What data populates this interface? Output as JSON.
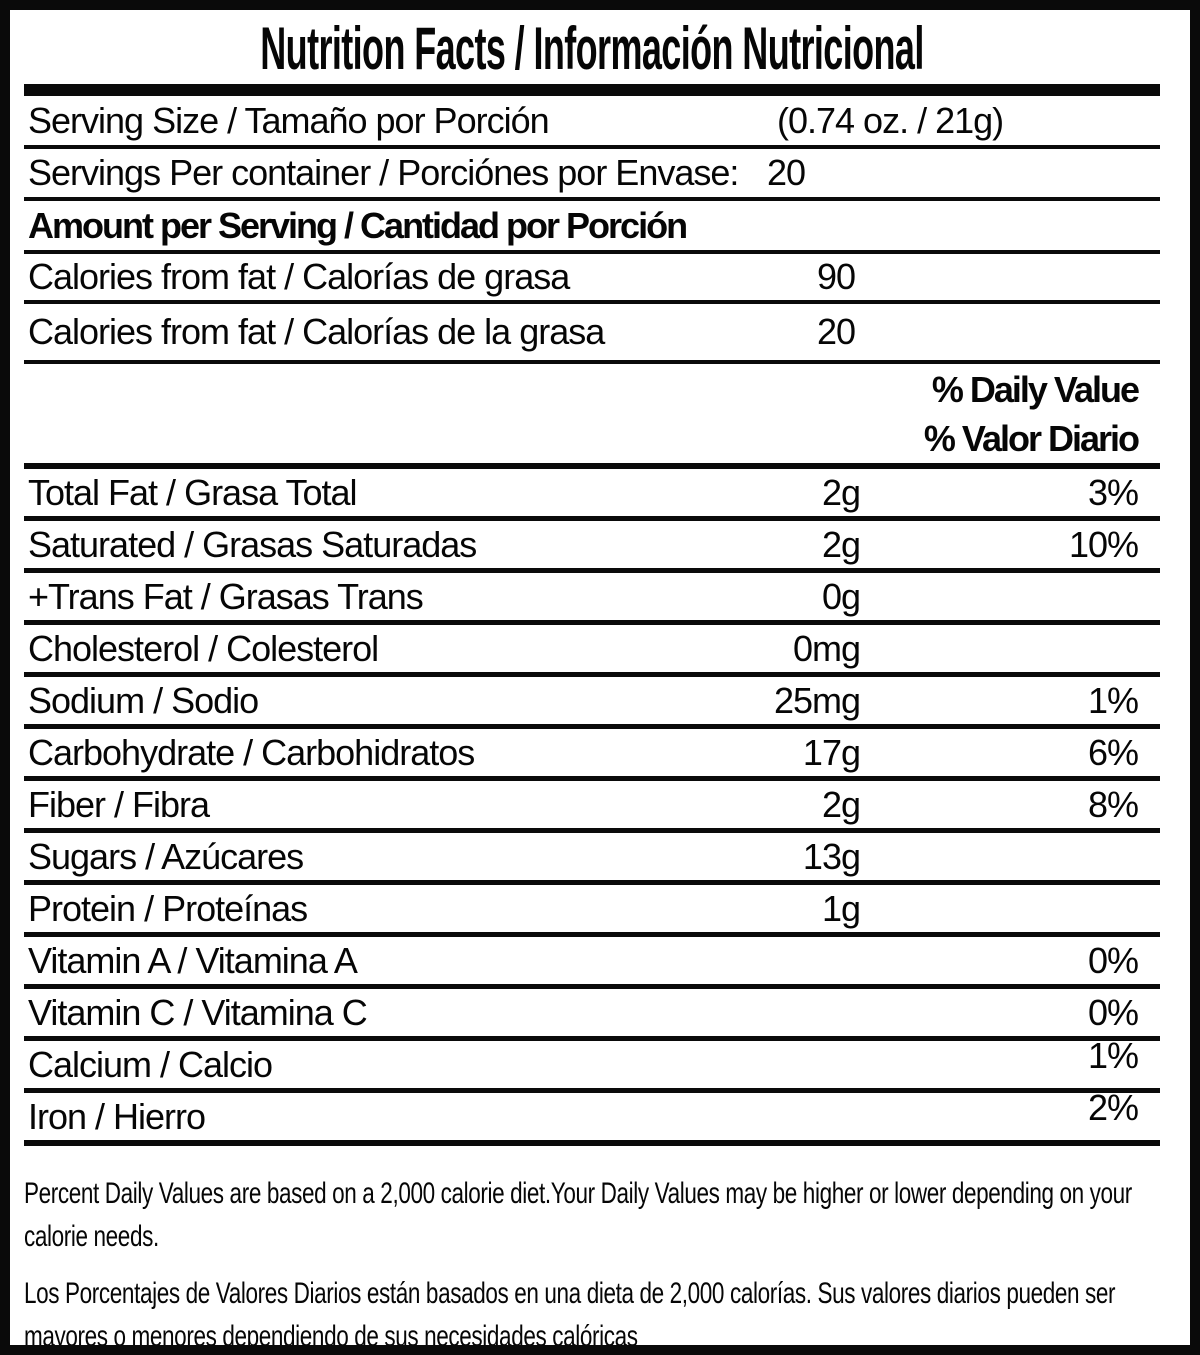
{
  "title": "Nutrition Facts / Información Nutricional",
  "serving": {
    "size_label": "Serving Size / Tamaño por Porción",
    "size_value": "(0.74 oz. / 21g)",
    "per_container_label": "Servings Per container / Porciónes por Envase:",
    "per_container_value": "20"
  },
  "amount_header": "Amount per Serving / Cantidad por Porción",
  "calories_rows": [
    {
      "label": "Calories from fat / Calorías de grasa",
      "value": "90"
    },
    {
      "label": "Calories from fat / Calorías de la grasa",
      "value": "20"
    }
  ],
  "daily_value_header": {
    "en": "% Daily Value",
    "es": "% Valor Diario"
  },
  "nutrients": [
    {
      "label": "Total Fat / Grasa Total",
      "amount": "2g",
      "dv": "3%"
    },
    {
      "label": "Saturated / Grasas Saturadas",
      "amount": "2g",
      "dv": "10%"
    },
    {
      "label": "+Trans Fat / Grasas Trans",
      "amount": "0g",
      "dv": ""
    },
    {
      "label": "Cholesterol / Colesterol",
      "amount": "0mg",
      "dv": ""
    },
    {
      "label": "Sodium / Sodio",
      "amount": "25mg",
      "dv": "1%"
    },
    {
      "label": "Carbohydrate / Carbohidratos",
      "amount": "17g",
      "dv": "6%"
    },
    {
      "label": "Fiber / Fibra",
      "amount": "2g",
      "dv": "8%"
    },
    {
      "label": "Sugars / Azúcares",
      "amount": "13g",
      "dv": ""
    },
    {
      "label": "Protein / Proteínas",
      "amount": "1g",
      "dv": ""
    },
    {
      "label": "Vitamin A / Vitamina A",
      "amount": "",
      "dv": "0%"
    },
    {
      "label": "Vitamin C / Vitamina C",
      "amount": "",
      "dv": "0%"
    },
    {
      "label": "Calcium / Calcio",
      "amount": "",
      "dv": "1%"
    },
    {
      "label": "Iron / Hierro",
      "amount": "",
      "dv": "2%"
    }
  ],
  "footnotes": {
    "en": "Percent Daily Values are based on a 2,000 calorie diet.Your Daily Values may be higher or lower depending on your calorie needs.",
    "es": "Los Porcentajes de Valores Diarios están basados en una dieta de 2,000 calorías. Sus valores diarios pueden ser mayores o menores dependiendo de sus necesidades calóricas"
  },
  "colors": {
    "text": "#060606",
    "background": "#ffffff"
  }
}
